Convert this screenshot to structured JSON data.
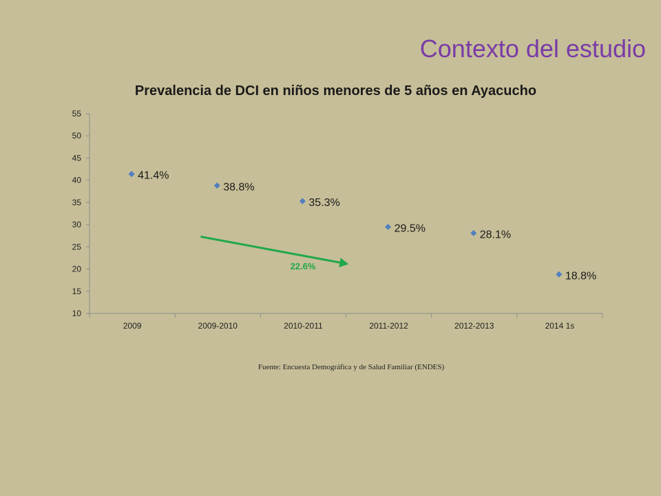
{
  "slide": {
    "title": "Contexto del estudio",
    "source": "Fuente: Encuesta Demográfica y de Salud Familiar (ENDES)"
  },
  "colors": {
    "background": "#c6be98",
    "title": "#7a3ba6",
    "marker": "#4f7fbf",
    "arrow": "#20a84a"
  },
  "chart_data": {
    "type": "scatter",
    "title": "Prevalencia de DCI en niños menores de 5 años en Ayacucho",
    "xlabel": "",
    "ylabel": "",
    "categories": [
      "2009",
      "2009-2010",
      "2010-2011",
      "2011-2012",
      "2012-2013",
      "2014 1s"
    ],
    "series": [
      {
        "values": [
          41.4,
          38.8,
          35.3,
          29.5,
          28.1,
          18.8
        ],
        "labels": [
          "41.4%",
          "38.8%",
          "35.3%",
          "29.5%",
          "28.1%",
          "18.8%"
        ]
      }
    ],
    "ylim": [
      10,
      55
    ],
    "yticks": [
      10,
      15,
      20,
      25,
      30,
      35,
      40,
      45,
      50,
      55
    ],
    "grid": false,
    "legend": "none",
    "marker": "diamond",
    "annotation": {
      "type": "arrow",
      "label": "22.6%",
      "from": {
        "category_index": 1.3,
        "value": 27.3
      },
      "to": {
        "category_index": 3.03,
        "value": 21.1
      }
    }
  }
}
